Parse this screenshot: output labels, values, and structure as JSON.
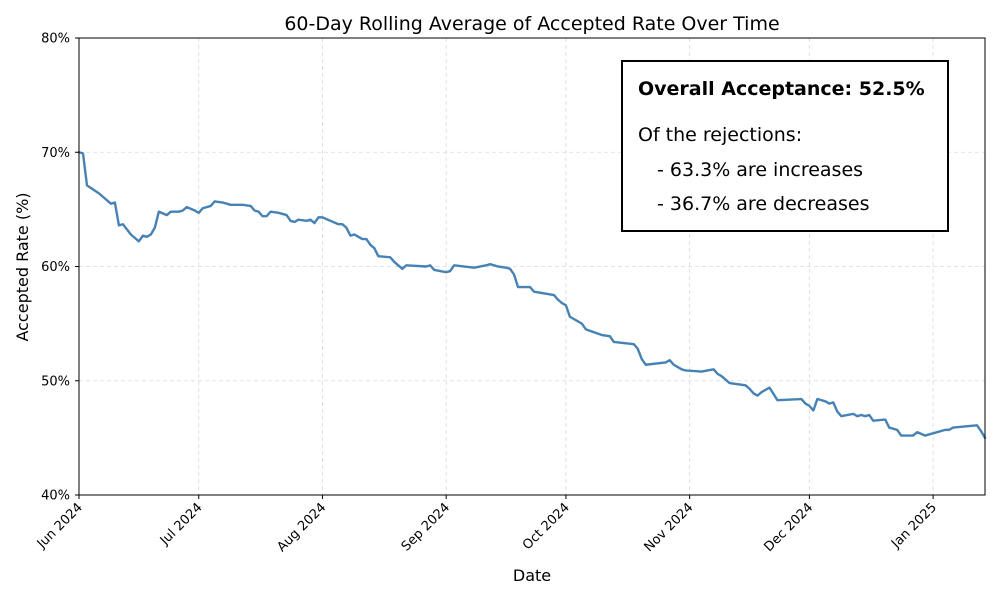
{
  "chart_data": {
    "type": "line",
    "title": "60-Day Rolling Average of Accepted Rate Over Time",
    "xlabel": "Date",
    "ylabel": "Accepted Rate (%)",
    "x_range": [
      "2024-06-01",
      "2025-01-14"
    ],
    "ylim": [
      40,
      80
    ],
    "y_ticks": [
      40,
      50,
      60,
      70,
      80
    ],
    "y_tick_labels": [
      "40%",
      "50%",
      "60%",
      "70%",
      "80%"
    ],
    "x_ticks": [
      "2024-06-01",
      "2024-07-01",
      "2024-08-01",
      "2024-09-01",
      "2024-10-01",
      "2024-11-01",
      "2024-12-01",
      "2025-01-01"
    ],
    "x_tick_labels": [
      "Jun 2024",
      "Jul 2024",
      "Aug 2024",
      "Sep 2024",
      "Oct 2024",
      "Nov 2024",
      "Dec 2024",
      "Jan 2025"
    ],
    "grid": true,
    "series": [
      {
        "color": "#4682b4",
        "points": [
          [
            "2024-06-01",
            70.0
          ],
          [
            "2024-06-02",
            69.9
          ],
          [
            "2024-06-03",
            67.1
          ],
          [
            "2024-06-06",
            66.4
          ],
          [
            "2024-06-08",
            65.8
          ],
          [
            "2024-06-09",
            65.5
          ],
          [
            "2024-06-10",
            65.6
          ],
          [
            "2024-06-11",
            63.6
          ],
          [
            "2024-06-12",
            63.7
          ],
          [
            "2024-06-14",
            62.8
          ],
          [
            "2024-06-16",
            62.2
          ],
          [
            "2024-06-17",
            62.7
          ],
          [
            "2024-06-18",
            62.6
          ],
          [
            "2024-06-19",
            62.8
          ],
          [
            "2024-06-20",
            63.4
          ],
          [
            "2024-06-21",
            64.8
          ],
          [
            "2024-06-23",
            64.5
          ],
          [
            "2024-06-24",
            64.8
          ],
          [
            "2024-06-26",
            64.8
          ],
          [
            "2024-06-27",
            64.9
          ],
          [
            "2024-06-28",
            65.2
          ],
          [
            "2024-06-30",
            64.9
          ],
          [
            "2024-07-01",
            64.7
          ],
          [
            "2024-07-02",
            65.1
          ],
          [
            "2024-07-04",
            65.3
          ],
          [
            "2024-07-05",
            65.7
          ],
          [
            "2024-07-07",
            65.6
          ],
          [
            "2024-07-09",
            65.4
          ],
          [
            "2024-07-12",
            65.4
          ],
          [
            "2024-07-14",
            65.3
          ],
          [
            "2024-07-15",
            64.9
          ],
          [
            "2024-07-16",
            64.8
          ],
          [
            "2024-07-17",
            64.4
          ],
          [
            "2024-07-18",
            64.4
          ],
          [
            "2024-07-19",
            64.8
          ],
          [
            "2024-07-21",
            64.7
          ],
          [
            "2024-07-23",
            64.5
          ],
          [
            "2024-07-24",
            64.0
          ],
          [
            "2024-07-25",
            63.9
          ],
          [
            "2024-07-26",
            64.1
          ],
          [
            "2024-07-28",
            64.0
          ],
          [
            "2024-07-29",
            64.1
          ],
          [
            "2024-07-30",
            63.8
          ],
          [
            "2024-07-31",
            64.3
          ],
          [
            "2024-08-01",
            64.3
          ],
          [
            "2024-08-03",
            64.0
          ],
          [
            "2024-08-05",
            63.7
          ],
          [
            "2024-08-06",
            63.7
          ],
          [
            "2024-08-07",
            63.4
          ],
          [
            "2024-08-08",
            62.7
          ],
          [
            "2024-08-09",
            62.8
          ],
          [
            "2024-08-10",
            62.6
          ],
          [
            "2024-08-11",
            62.4
          ],
          [
            "2024-08-12",
            62.4
          ],
          [
            "2024-08-13",
            61.9
          ],
          [
            "2024-08-14",
            61.6
          ],
          [
            "2024-08-15",
            60.9
          ],
          [
            "2024-08-18",
            60.8
          ],
          [
            "2024-08-19",
            60.4
          ],
          [
            "2024-08-21",
            59.8
          ],
          [
            "2024-08-22",
            60.1
          ],
          [
            "2024-08-27",
            60.0
          ],
          [
            "2024-08-28",
            60.1
          ],
          [
            "2024-08-29",
            59.7
          ],
          [
            "2024-09-01",
            59.5
          ],
          [
            "2024-09-02",
            59.6
          ],
          [
            "2024-09-03",
            60.1
          ],
          [
            "2024-09-08",
            59.9
          ],
          [
            "2024-09-11",
            60.1
          ],
          [
            "2024-09-12",
            60.2
          ],
          [
            "2024-09-14",
            60.0
          ],
          [
            "2024-09-16",
            59.9
          ],
          [
            "2024-09-17",
            59.8
          ],
          [
            "2024-09-18",
            59.3
          ],
          [
            "2024-09-19",
            58.2
          ],
          [
            "2024-09-22",
            58.2
          ],
          [
            "2024-09-23",
            57.8
          ],
          [
            "2024-09-28",
            57.5
          ],
          [
            "2024-09-29",
            57.1
          ],
          [
            "2024-09-30",
            56.8
          ],
          [
            "2024-10-01",
            56.6
          ],
          [
            "2024-10-02",
            55.6
          ],
          [
            "2024-10-05",
            55.0
          ],
          [
            "2024-10-06",
            54.5
          ],
          [
            "2024-10-10",
            54.0
          ],
          [
            "2024-10-12",
            53.9
          ],
          [
            "2024-10-13",
            53.4
          ],
          [
            "2024-10-18",
            53.2
          ],
          [
            "2024-10-19",
            52.8
          ],
          [
            "2024-10-20",
            51.9
          ],
          [
            "2024-10-21",
            51.4
          ],
          [
            "2024-10-26",
            51.6
          ],
          [
            "2024-10-27",
            51.8
          ],
          [
            "2024-10-28",
            51.4
          ],
          [
            "2024-10-30",
            51.0
          ],
          [
            "2024-10-31",
            50.9
          ],
          [
            "2024-11-04",
            50.8
          ],
          [
            "2024-11-07",
            51.0
          ],
          [
            "2024-11-08",
            50.6
          ],
          [
            "2024-11-09",
            50.4
          ],
          [
            "2024-11-11",
            49.8
          ],
          [
            "2024-11-15",
            49.6
          ],
          [
            "2024-11-16",
            49.3
          ],
          [
            "2024-11-17",
            48.9
          ],
          [
            "2024-11-18",
            48.7
          ],
          [
            "2024-11-19",
            49.0
          ],
          [
            "2024-11-21",
            49.4
          ],
          [
            "2024-11-23",
            48.3
          ],
          [
            "2024-11-29",
            48.4
          ],
          [
            "2024-11-30",
            48.0
          ],
          [
            "2024-12-01",
            47.8
          ],
          [
            "2024-12-02",
            47.4
          ],
          [
            "2024-12-03",
            48.4
          ],
          [
            "2024-12-05",
            48.2
          ],
          [
            "2024-12-06",
            48.0
          ],
          [
            "2024-12-07",
            48.1
          ],
          [
            "2024-12-08",
            47.3
          ],
          [
            "2024-12-09",
            46.9
          ],
          [
            "2024-12-12",
            47.1
          ],
          [
            "2024-12-13",
            46.9
          ],
          [
            "2024-12-14",
            47.0
          ],
          [
            "2024-12-15",
            46.9
          ],
          [
            "2024-12-16",
            47.0
          ],
          [
            "2024-12-17",
            46.5
          ],
          [
            "2024-12-20",
            46.6
          ],
          [
            "2024-12-21",
            45.9
          ],
          [
            "2024-12-23",
            45.7
          ],
          [
            "2024-12-24",
            45.2
          ],
          [
            "2024-12-27",
            45.2
          ],
          [
            "2024-12-28",
            45.5
          ],
          [
            "2024-12-30",
            45.2
          ],
          [
            "2025-01-04",
            45.7
          ],
          [
            "2025-01-05",
            45.7
          ],
          [
            "2025-01-06",
            45.9
          ],
          [
            "2025-01-12",
            46.1
          ],
          [
            "2025-01-13",
            45.6
          ],
          [
            "2025-01-14",
            45.0
          ]
        ]
      }
    ],
    "annotation": {
      "headline": "Overall Acceptance: 52.5%",
      "subheading": "Of the rejections:",
      "items": [
        "- 63.3% are increases",
        "- 36.7% are decreases"
      ],
      "location": "top-right"
    }
  }
}
